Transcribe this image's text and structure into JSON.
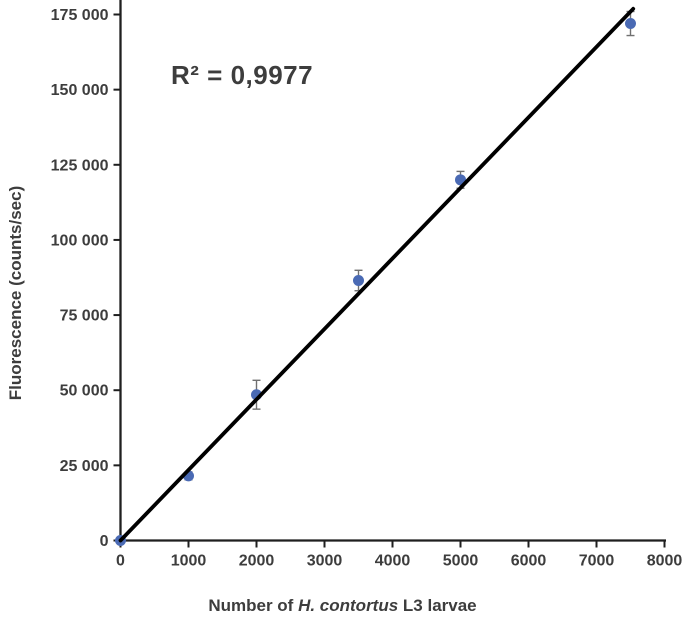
{
  "figure": {
    "background": "#ffffff",
    "annotation": {
      "r_squared": "R² = 0,9977"
    },
    "y_title": "Fluorescence (counts/sec)",
    "x_title": {
      "prefix": "Number of ",
      "italic": "H. contortus",
      "suffix": " L3 larvae"
    }
  },
  "chart_data": {
    "type": "scatter",
    "title": "",
    "xlabel": "Number of H. contortus L3 larvae",
    "ylabel": "Fluorescence (counts/sec)",
    "xlim": [
      0,
      8000
    ],
    "ylim": [
      0,
      179000
    ],
    "grid": false,
    "legend": false,
    "annotation": "R² = 0,9977",
    "x_ticks": [
      {
        "value": 0,
        "label": "0"
      },
      {
        "value": 1000,
        "label": "1000"
      },
      {
        "value": 2000,
        "label": "2000"
      },
      {
        "value": 3000,
        "label": "3000"
      },
      {
        "value": 4000,
        "label": "4000"
      },
      {
        "value": 5000,
        "label": "5000"
      },
      {
        "value": 6000,
        "label": "6000"
      },
      {
        "value": 7000,
        "label": "7000"
      },
      {
        "value": 8000,
        "label": "8000"
      }
    ],
    "y_ticks": [
      {
        "value": 0,
        "label": "0"
      },
      {
        "value": 25000,
        "label": "25 000"
      },
      {
        "value": 50000,
        "label": "50 000"
      },
      {
        "value": 75000,
        "label": "75 000"
      },
      {
        "value": 100000,
        "label": "100 000"
      },
      {
        "value": 125000,
        "label": "125 000"
      },
      {
        "value": 150000,
        "label": "150 000"
      },
      {
        "value": 175000,
        "label": "175 000"
      }
    ],
    "series": [
      {
        "marker": "circle",
        "color": "#4a6ab4",
        "points": [
          {
            "x": 0,
            "y": 0,
            "yerr": 0
          },
          {
            "x": 1000,
            "y": 21500,
            "yerr": 1300
          },
          {
            "x": 2000,
            "y": 48500,
            "yerr": 4800
          },
          {
            "x": 3500,
            "y": 86500,
            "yerr": 3400
          },
          {
            "x": 5000,
            "y": 120000,
            "yerr": 2800
          },
          {
            "x": 7500,
            "y": 172000,
            "yerr": 4000
          }
        ]
      }
    ],
    "trendline": {
      "type": "linear",
      "slope": 23.46,
      "intercept": 0,
      "x_start": 0,
      "x_end": 7540,
      "color": "#000000",
      "label": "R² = 0,9977"
    },
    "error_bar_color": "#707070",
    "axis_color": "#1f1f1f",
    "text_color": "#3d3d3d"
  }
}
